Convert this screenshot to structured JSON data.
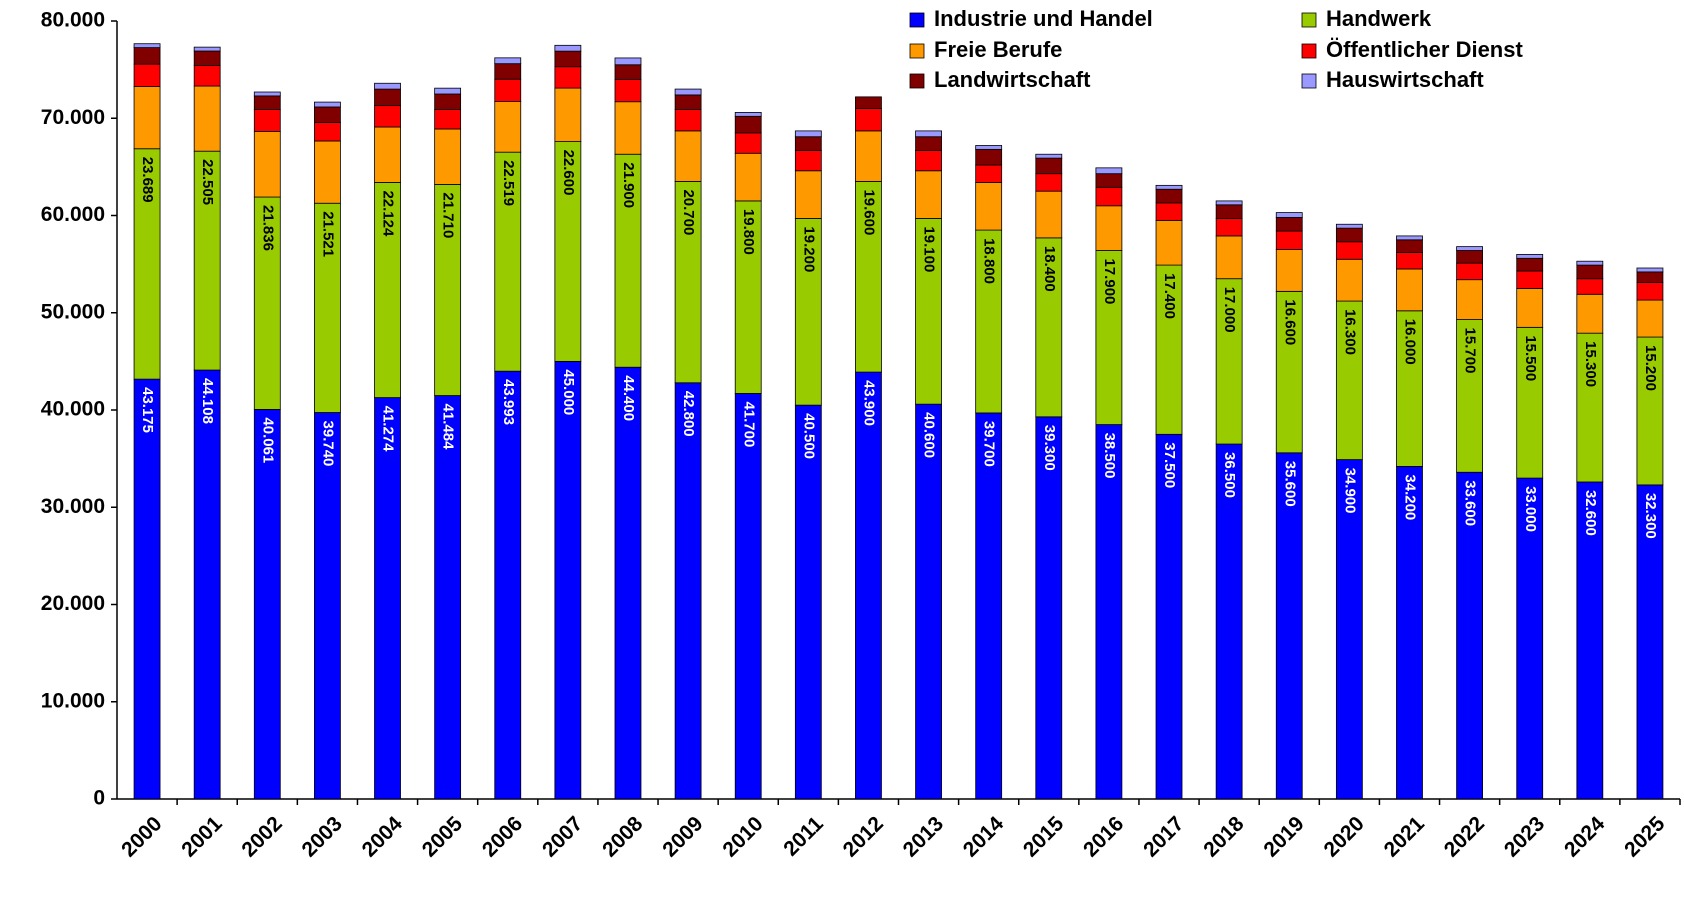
{
  "chart_data": {
    "type": "stacked_bar",
    "categories": [
      "2000",
      "2001",
      "2002",
      "2003",
      "2004",
      "2005",
      "2006",
      "2007",
      "2008",
      "2009",
      "2010",
      "2011",
      "2012",
      "2013",
      "2014",
      "2015",
      "2016",
      "2017",
      "2018",
      "2019",
      "2020",
      "2021",
      "2022",
      "2023",
      "2024",
      "2025"
    ],
    "series": [
      {
        "name": "Industrie und Handel",
        "color": "#0000ff",
        "values": [
          43175,
          44108,
          40061,
          39740,
          41274,
          41484,
          43993,
          45000,
          44400,
          42800,
          41700,
          40500,
          43900,
          40600,
          39700,
          39300,
          38500,
          37500,
          36500,
          35600,
          34900,
          34200,
          33600,
          33000,
          32600,
          32300
        ],
        "value_labels": [
          "43.175",
          "44.108",
          "40.061",
          "39.740",
          "41.274",
          "41.484",
          "43.993",
          "45.000",
          "44.400",
          "42.800",
          "41.700",
          "40.500",
          "43.900",
          "40.600",
          "39.700",
          "39.300",
          "38.500",
          "37.500",
          "36.500",
          "35.600",
          "34.900",
          "34.200",
          "33.600",
          "33.000",
          "32.600",
          "32.300"
        ]
      },
      {
        "name": "Handwerk",
        "color": "#99cc00",
        "values": [
          23689,
          22505,
          21836,
          21521,
          22124,
          21710,
          22519,
          22600,
          21900,
          20700,
          19800,
          19200,
          19600,
          19100,
          18800,
          18400,
          17900,
          17400,
          17000,
          16600,
          16300,
          16000,
          15700,
          15500,
          15300,
          15200
        ],
        "value_labels": [
          "23.689",
          "22.505",
          "21.836",
          "21.521",
          "22.124",
          "21.710",
          "22.519",
          "22.600",
          "21.900",
          "20.700",
          "19.800",
          "19.200",
          "19.600",
          "19.100",
          "18.800",
          "18.400",
          "17.900",
          "17.400",
          "17.000",
          "16.600",
          "16.300",
          "16.000",
          "15.700",
          "15.500",
          "15.300",
          "15.200"
        ]
      },
      {
        "name": "Freie Berufe",
        "color": "#ff9900",
        "values": [
          6400,
          6700,
          6750,
          6400,
          5700,
          5700,
          5200,
          5500,
          5400,
          5200,
          4900,
          4900,
          5200,
          4900,
          4900,
          4800,
          4600,
          4600,
          4400,
          4300,
          4300,
          4300,
          4100,
          4000,
          4000,
          3800
        ]
      },
      {
        "name": "Öffentlicher Dienst",
        "color": "#ff0000",
        "values": [
          2300,
          2100,
          2250,
          1900,
          2200,
          2000,
          2300,
          2200,
          2300,
          2200,
          2100,
          2100,
          2300,
          2100,
          1800,
          1800,
          1900,
          1800,
          1800,
          1900,
          1800,
          1700,
          1700,
          1800,
          1600,
          1800
        ]
      },
      {
        "name": "Landwirtschaft",
        "color": "#800000",
        "values": [
          1700,
          1500,
          1400,
          1600,
          1700,
          1600,
          1600,
          1600,
          1500,
          1500,
          1700,
          1400,
          1200,
          1400,
          1600,
          1600,
          1400,
          1400,
          1400,
          1400,
          1400,
          1300,
          1300,
          1300,
          1400,
          1100
        ]
      },
      {
        "name": "Hauswirtschaft",
        "color": "#9999ff",
        "values": [
          400,
          400,
          400,
          500,
          600,
          600,
          600,
          600,
          700,
          600,
          400,
          600,
          0,
          600,
          400,
          400,
          600,
          400,
          400,
          500,
          400,
          400,
          400,
          400,
          400,
          400
        ]
      }
    ],
    "ylim": [
      0,
      80000
    ],
    "yticks": [
      0,
      {
        "value": 10000,
        "label": "10.000"
      },
      {
        "value": 20000,
        "label": "20.000"
      },
      {
        "value": 30000,
        "label": "30.000"
      },
      {
        "value": 40000,
        "label": "40.000"
      },
      {
        "value": 50000,
        "label": "50.000"
      },
      {
        "value": 60000,
        "label": "60.000"
      },
      {
        "value": 70000,
        "label": "70.000"
      },
      {
        "value": 80000,
        "label": "80.000"
      }
    ],
    "legend": "top-right"
  }
}
